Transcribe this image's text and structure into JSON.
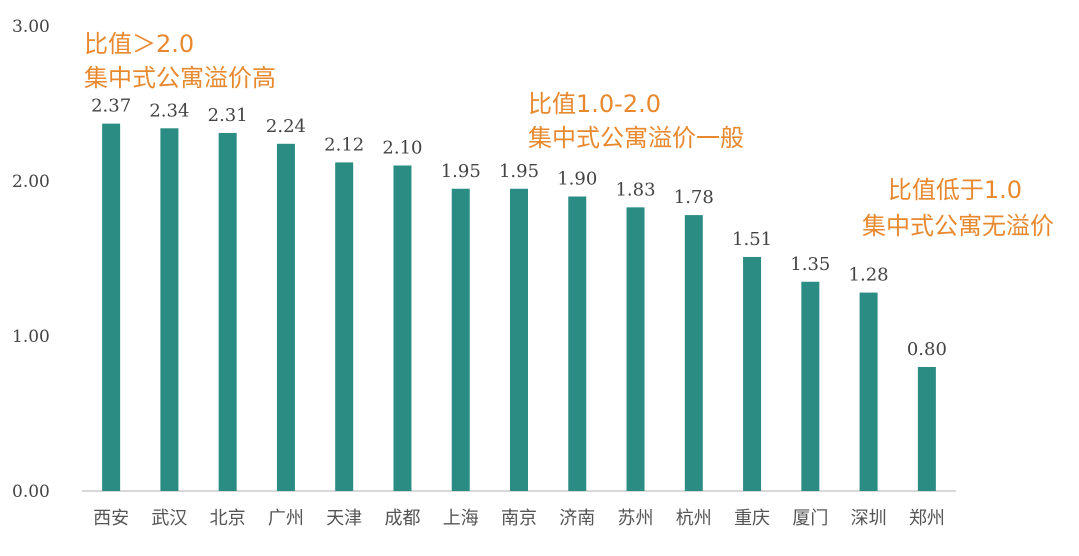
{
  "chart_data": {
    "type": "bar",
    "categories": [
      "西安",
      "武汉",
      "北京",
      "广州",
      "天津",
      "成都",
      "上海",
      "南京",
      "济南",
      "苏州",
      "杭州",
      "重庆",
      "厦门",
      "深圳",
      "郑州"
    ],
    "values": [
      2.37,
      2.34,
      2.31,
      2.24,
      2.12,
      2.1,
      1.95,
      1.95,
      1.9,
      1.83,
      1.78,
      1.51,
      1.35,
      1.28,
      0.8
    ],
    "value_labels": [
      "2.37",
      "2.34",
      "2.31",
      "2.24",
      "2.12",
      "2.10",
      "1.95",
      "1.95",
      "1.90",
      "1.83",
      "1.78",
      "1.51",
      "1.35",
      "1.28",
      "0.80"
    ],
    "ylim": [
      0,
      3
    ],
    "y_ticks": [
      "0.00",
      "1.00",
      "2.00",
      "3.00"
    ],
    "y_tick_values": [
      0,
      1,
      2,
      3
    ],
    "title": "",
    "xlabel": "",
    "ylabel": "",
    "grid": false,
    "bar_color": "#2A8C82",
    "annotation_color": "#E8892F",
    "annotations": [
      {
        "lines": [
          "比值＞2.0",
          "集中式公寓溢价高"
        ]
      },
      {
        "lines": [
          "比值1.0-2.0",
          "集中式公寓溢价一般"
        ]
      },
      {
        "lines": [
          "比值低于1.0",
          "集中式公寓无溢价"
        ]
      }
    ]
  }
}
